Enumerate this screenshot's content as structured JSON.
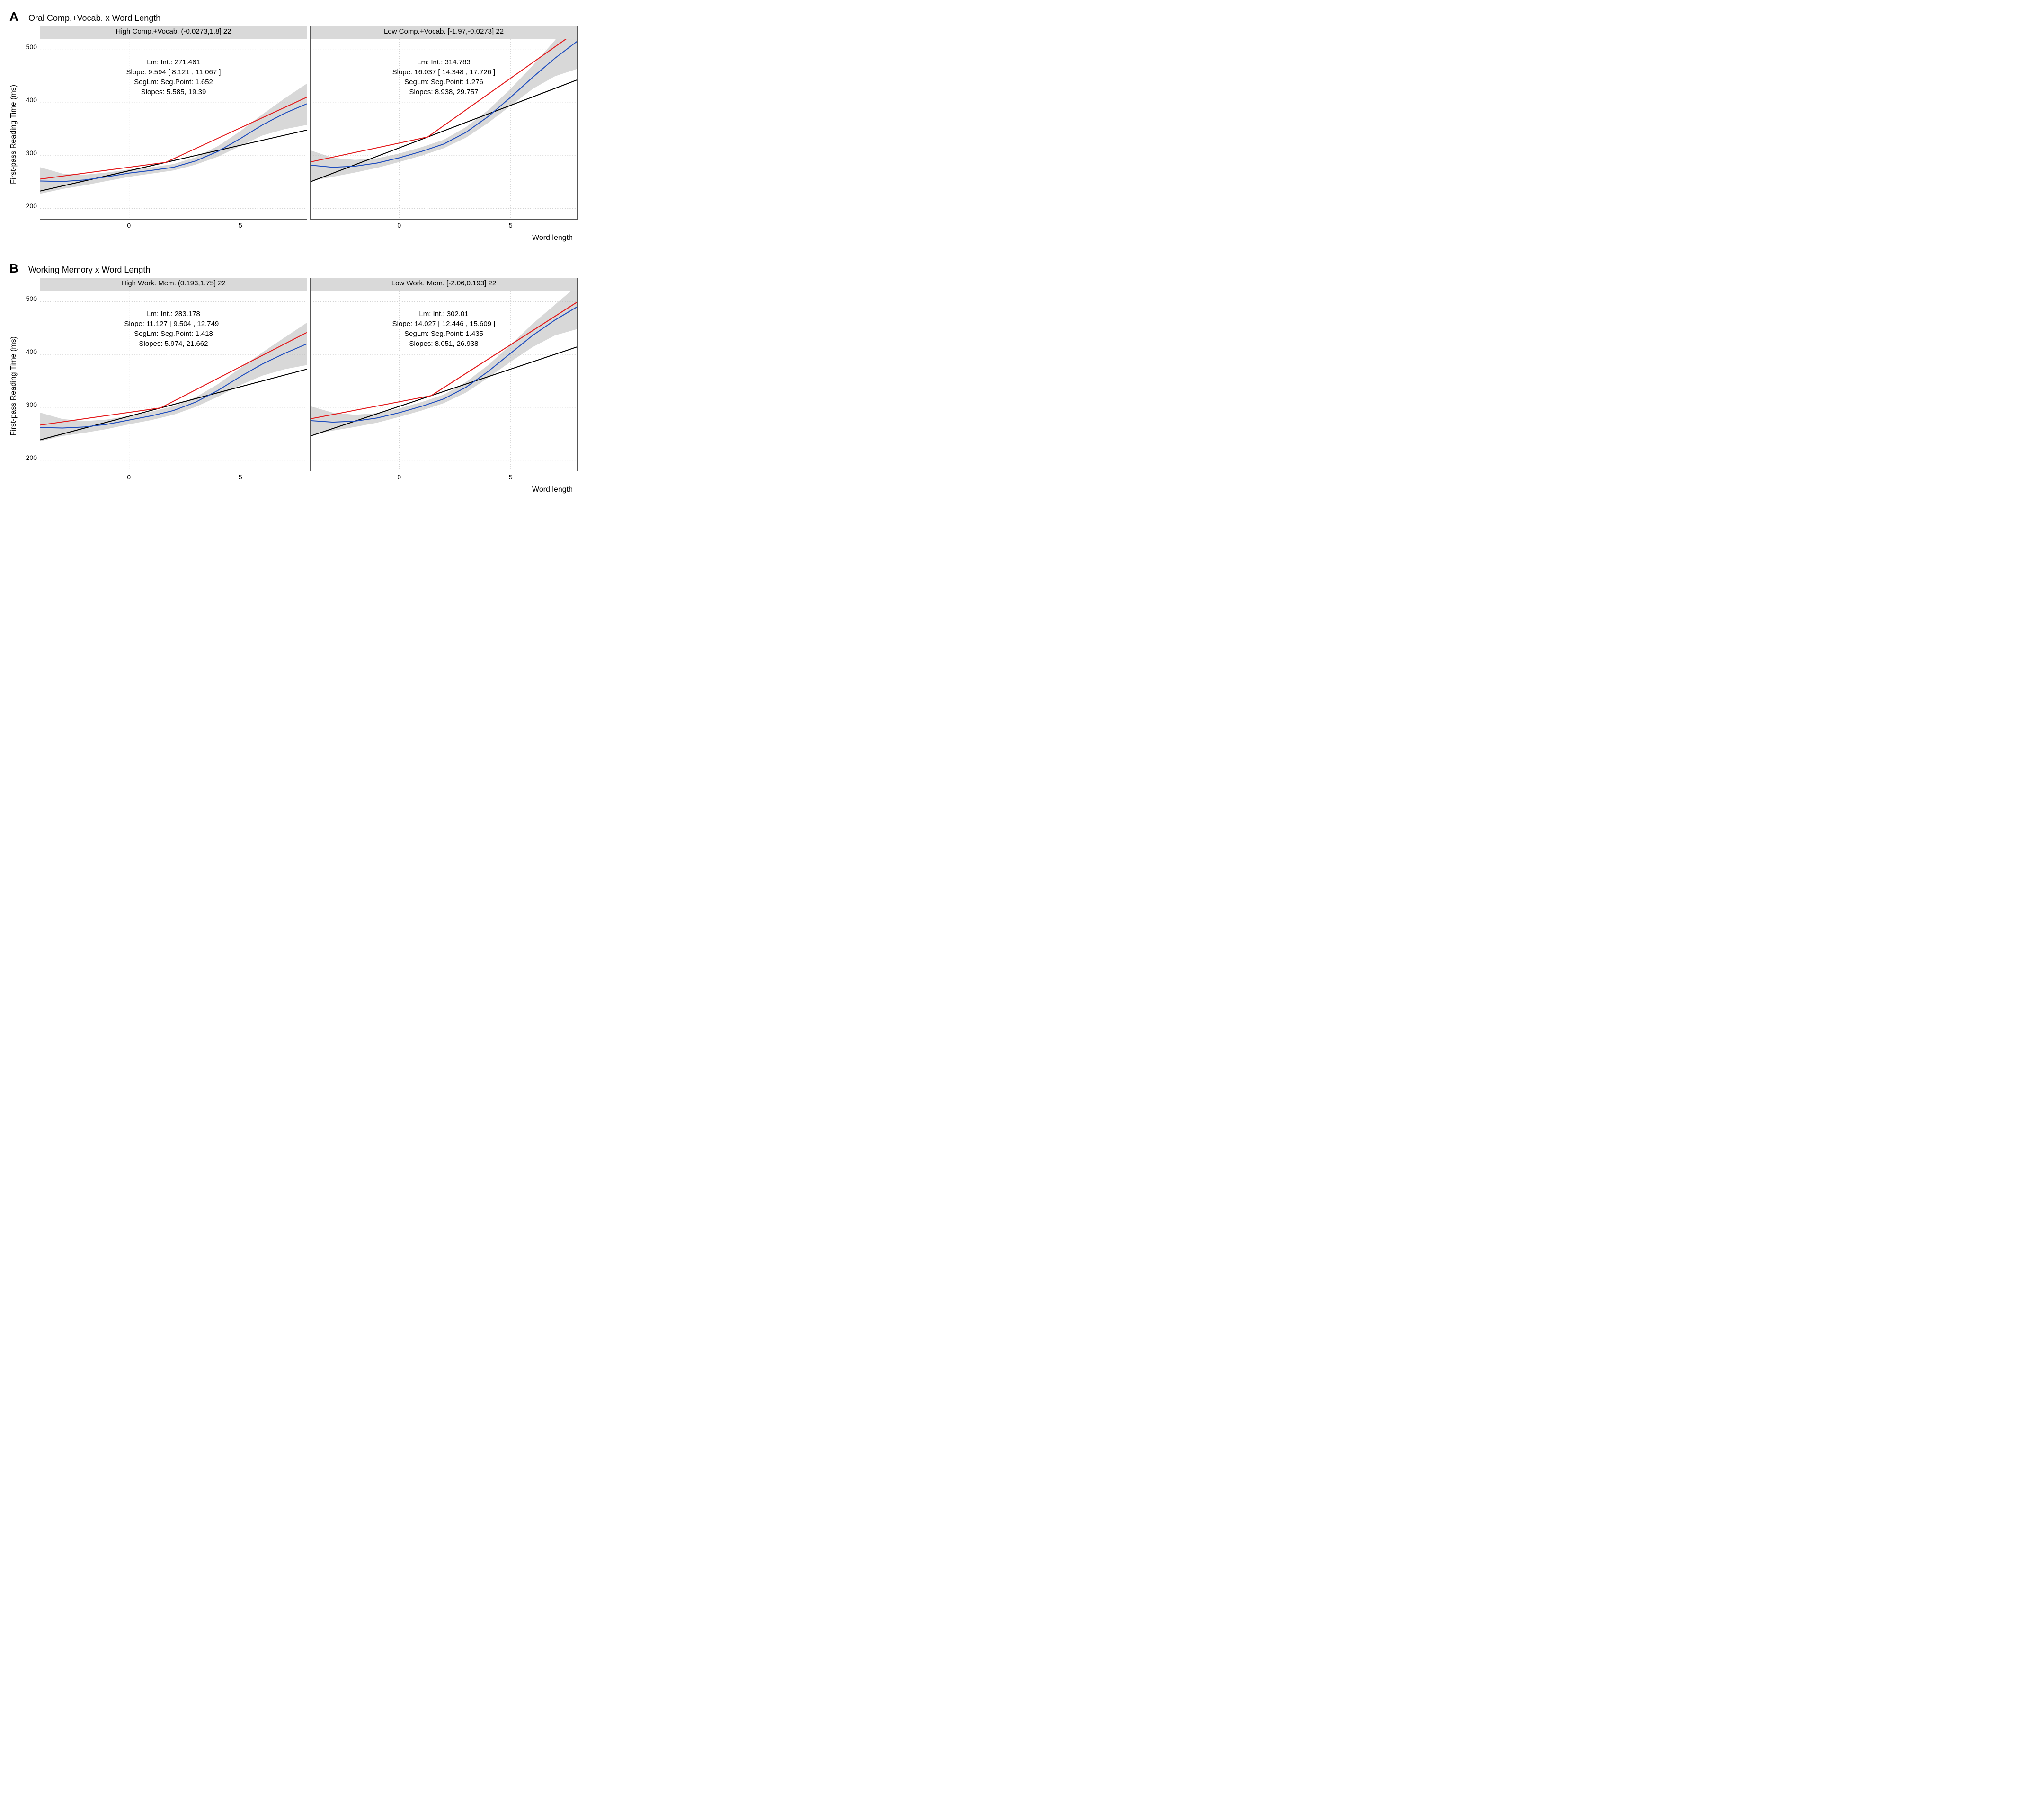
{
  "figures": [
    {
      "letter": "A",
      "title": "Oral Comp.+Vocab. x Word Length",
      "ylabel": "First-pass Reading Time (ms)",
      "xlabel": "Word length",
      "ylim": [
        180,
        520
      ],
      "yticks": [
        200,
        300,
        400,
        500
      ],
      "xlim": [
        -4,
        8
      ],
      "xticks": [
        0,
        5
      ],
      "grid_color": "#cccccc",
      "background_color": "#ffffff",
      "strip_bg": "#d9d9d9",
      "line_width": 2,
      "colors": {
        "lm": "#000000",
        "seg": "#e31a1c",
        "loess": "#1f4ebf",
        "ribbon": "#b8b8b8"
      },
      "panels": [
        {
          "strip": "High Comp.+Vocab. (-0.0273,1.8] 22",
          "annot": [
            "Lm: Int.: 271.461",
            "Slope: 9.594 [ 8.121 , 11.067 ]",
            "SegLm: Seg.Point: 1.652",
            "Slopes: 5.585, 19.39"
          ],
          "lm": {
            "intercept": 271.461,
            "slope": 9.594
          },
          "seg": {
            "breakpoint": 1.652,
            "int1": 271.5,
            "slope1": 5.585,
            "slope2": 19.39
          },
          "loess": [
            [
              -4,
              252
            ],
            [
              -3,
              251
            ],
            [
              -2,
              254
            ],
            [
              -1,
              260
            ],
            [
              0,
              267
            ],
            [
              1,
              272
            ],
            [
              2,
              278
            ],
            [
              3,
              290
            ],
            [
              4,
              308
            ],
            [
              5,
              332
            ],
            [
              6,
              358
            ],
            [
              7,
              380
            ],
            [
              8,
              398
            ]
          ],
          "ribbon_lo": [
            [
              -4,
              228
            ],
            [
              -3,
              237
            ],
            [
              -2,
              244
            ],
            [
              -1,
              252
            ],
            [
              0,
              260
            ],
            [
              1,
              266
            ],
            [
              2,
              272
            ],
            [
              3,
              283
            ],
            [
              4,
              298
            ],
            [
              5,
              318
            ],
            [
              6,
              338
            ],
            [
              7,
              350
            ],
            [
              8,
              358
            ]
          ],
          "ribbon_hi": [
            [
              -4,
              278
            ],
            [
              -3,
              266
            ],
            [
              -2,
              264
            ],
            [
              -1,
              268
            ],
            [
              0,
              274
            ],
            [
              1,
              278
            ],
            [
              2,
              284
            ],
            [
              3,
              297
            ],
            [
              4,
              318
            ],
            [
              5,
              346
            ],
            [
              6,
              378
            ],
            [
              7,
              408
            ],
            [
              8,
              436
            ]
          ]
        },
        {
          "strip": "Low Comp.+Vocab. [-1.97,-0.0273] 22",
          "annot": [
            "Lm: Int.: 314.783",
            "Slope: 16.037 [ 14.348 , 17.726 ]",
            "SegLm: Seg.Point: 1.276",
            "Slopes: 8.938, 29.757"
          ],
          "lm": {
            "intercept": 314.783,
            "slope": 16.037
          },
          "seg": {
            "breakpoint": 1.276,
            "int1": 314.8,
            "slope1": 8.938,
            "slope2": 29.757
          },
          "loess": [
            [
              -4,
              282
            ],
            [
              -3,
              278
            ],
            [
              -2,
              280
            ],
            [
              -1,
              286
            ],
            [
              0,
              296
            ],
            [
              1,
              308
            ],
            [
              2,
              322
            ],
            [
              3,
              344
            ],
            [
              4,
              374
            ],
            [
              5,
              410
            ],
            [
              6,
              448
            ],
            [
              7,
              484
            ],
            [
              8,
              516
            ]
          ],
          "ribbon_lo": [
            [
              -4,
              252
            ],
            [
              -3,
              260
            ],
            [
              -2,
              268
            ],
            [
              -1,
              277
            ],
            [
              0,
              288
            ],
            [
              1,
              300
            ],
            [
              2,
              314
            ],
            [
              3,
              334
            ],
            [
              4,
              362
            ],
            [
              5,
              394
            ],
            [
              6,
              426
            ],
            [
              7,
              450
            ],
            [
              8,
              464
            ]
          ],
          "ribbon_hi": [
            [
              -4,
              310
            ],
            [
              -3,
              296
            ],
            [
              -2,
              292
            ],
            [
              -1,
              295
            ],
            [
              0,
              304
            ],
            [
              1,
              316
            ],
            [
              2,
              330
            ],
            [
              3,
              354
            ],
            [
              4,
              386
            ],
            [
              5,
              426
            ],
            [
              6,
              470
            ],
            [
              7,
              518
            ],
            [
              8,
              570
            ]
          ]
        }
      ]
    },
    {
      "letter": "B",
      "title": "Working Memory x Word Length",
      "ylabel": "First-pass Reading Time (ms)",
      "xlabel": "Word length",
      "ylim": [
        180,
        520
      ],
      "yticks": [
        200,
        300,
        400,
        500
      ],
      "xlim": [
        -4,
        8
      ],
      "xticks": [
        0,
        5
      ],
      "grid_color": "#cccccc",
      "background_color": "#ffffff",
      "strip_bg": "#d9d9d9",
      "line_width": 2,
      "colors": {
        "lm": "#000000",
        "seg": "#e31a1c",
        "loess": "#1f4ebf",
        "ribbon": "#b8b8b8"
      },
      "panels": [
        {
          "strip": "High Work. Mem. (0.193,1.75] 22",
          "annot": [
            "Lm: Int.: 283.178",
            "Slope: 11.127 [ 9.504 , 12.749 ]",
            "SegLm: Seg.Point: 1.418",
            "Slopes: 5.974, 21.662"
          ],
          "lm": {
            "intercept": 283.178,
            "slope": 11.127
          },
          "seg": {
            "breakpoint": 1.418,
            "int1": 283.2,
            "slope1": 5.974,
            "slope2": 21.662
          },
          "loess": [
            [
              -4,
              262
            ],
            [
              -3,
              261
            ],
            [
              -2,
              263
            ],
            [
              -1,
              268
            ],
            [
              0,
              276
            ],
            [
              1,
              284
            ],
            [
              2,
              294
            ],
            [
              3,
              310
            ],
            [
              4,
              332
            ],
            [
              5,
              358
            ],
            [
              6,
              382
            ],
            [
              7,
              402
            ],
            [
              8,
              420
            ]
          ],
          "ribbon_lo": [
            [
              -4,
              236
            ],
            [
              -3,
              246
            ],
            [
              -2,
              252
            ],
            [
              -1,
              259
            ],
            [
              0,
              268
            ],
            [
              1,
              276
            ],
            [
              2,
              286
            ],
            [
              3,
              301
            ],
            [
              4,
              320
            ],
            [
              5,
              342
            ],
            [
              6,
              360
            ],
            [
              7,
              372
            ],
            [
              8,
              380
            ]
          ],
          "ribbon_hi": [
            [
              -4,
              290
            ],
            [
              -3,
              278
            ],
            [
              -2,
              274
            ],
            [
              -1,
              277
            ],
            [
              0,
              284
            ],
            [
              1,
              292
            ],
            [
              2,
              302
            ],
            [
              3,
              319
            ],
            [
              4,
              344
            ],
            [
              5,
              374
            ],
            [
              6,
              404
            ],
            [
              7,
              432
            ],
            [
              8,
              460
            ]
          ]
        },
        {
          "strip": "Low Work. Mem. [-2.06,0.193] 22",
          "annot": [
            "Lm: Int.: 302.01",
            "Slope: 14.027 [ 12.446 , 15.609 ]",
            "SegLm: Seg.Point: 1.435",
            "Slopes: 8.051, 26.938"
          ],
          "lm": {
            "intercept": 302.01,
            "slope": 14.027
          },
          "seg": {
            "breakpoint": 1.435,
            "int1": 302.0,
            "slope1": 8.051,
            "slope2": 26.938
          },
          "loess": [
            [
              -4,
              275
            ],
            [
              -3,
              272
            ],
            [
              -2,
              274
            ],
            [
              -1,
              280
            ],
            [
              0,
              290
            ],
            [
              1,
              302
            ],
            [
              2,
              316
            ],
            [
              3,
              338
            ],
            [
              4,
              368
            ],
            [
              5,
              402
            ],
            [
              6,
              436
            ],
            [
              7,
              465
            ],
            [
              8,
              490
            ]
          ],
          "ribbon_lo": [
            [
              -4,
              248
            ],
            [
              -3,
              256
            ],
            [
              -2,
              263
            ],
            [
              -1,
              271
            ],
            [
              0,
              282
            ],
            [
              1,
              294
            ],
            [
              2,
              308
            ],
            [
              3,
              328
            ],
            [
              4,
              356
            ],
            [
              5,
              386
            ],
            [
              6,
              414
            ],
            [
              7,
              436
            ],
            [
              8,
              448
            ]
          ],
          "ribbon_hi": [
            [
              -4,
              302
            ],
            [
              -3,
              290
            ],
            [
              -2,
              286
            ],
            [
              -1,
              289
            ],
            [
              0,
              298
            ],
            [
              1,
              310
            ],
            [
              2,
              324
            ],
            [
              3,
              348
            ],
            [
              4,
              380
            ],
            [
              5,
              418
            ],
            [
              6,
              458
            ],
            [
              7,
              494
            ],
            [
              8,
              530
            ]
          ]
        }
      ]
    }
  ]
}
